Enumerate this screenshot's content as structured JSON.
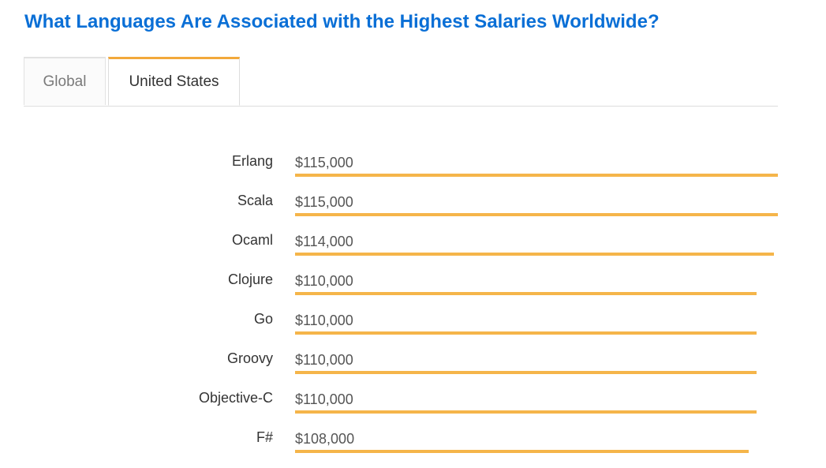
{
  "header": {
    "title": "What Languages Are Associated with the Highest Salaries Worldwide?"
  },
  "tabs": [
    {
      "label": "Global",
      "active": false
    },
    {
      "label": "United States",
      "active": true
    }
  ],
  "colors": {
    "title": "#0a6fd6",
    "bar": "#f5b54a",
    "active_tab_accent": "#f2a93b"
  },
  "chart_data": {
    "type": "bar",
    "orientation": "horizontal",
    "categories": [
      "Erlang",
      "Scala",
      "Ocaml",
      "Clojure",
      "Go",
      "Groovy",
      "Objective-C",
      "F#"
    ],
    "values": [
      115000,
      115000,
      114000,
      110000,
      110000,
      110000,
      110000,
      108000
    ],
    "value_labels": [
      "$115,000",
      "$115,000",
      "$114,000",
      "$110,000",
      "$110,000",
      "$110,000",
      "$110,000",
      "$108,000"
    ],
    "xlim": [
      0,
      115000
    ]
  }
}
